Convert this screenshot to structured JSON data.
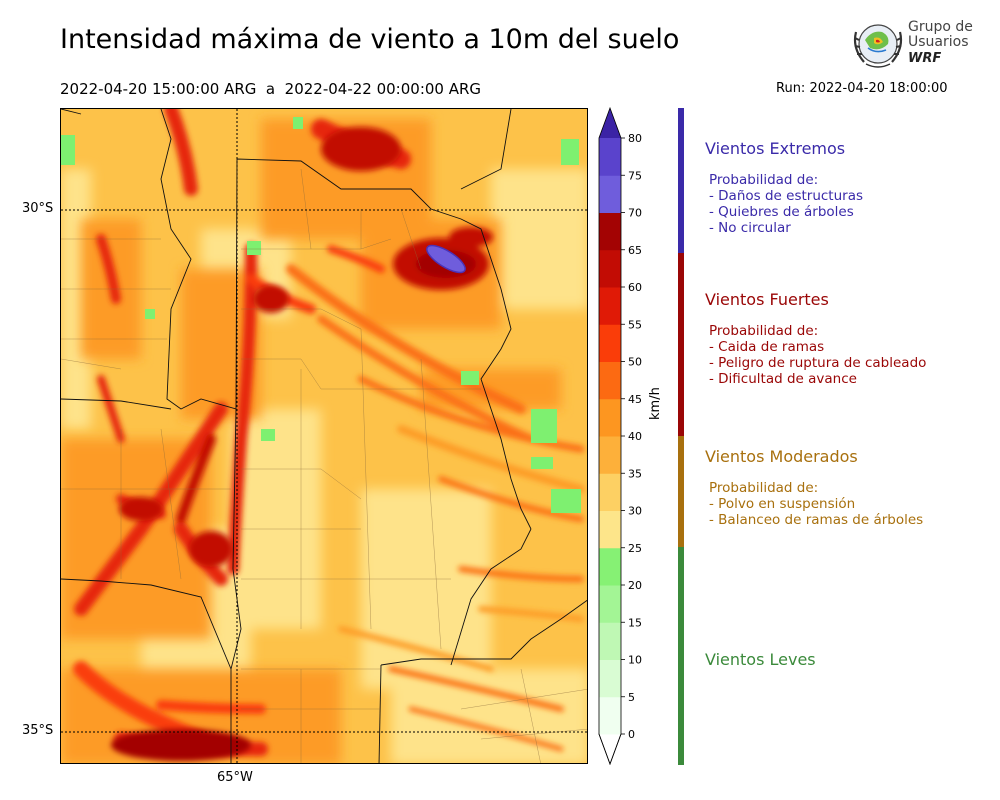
{
  "header": {
    "title": "Intensidad máxima de viento a 10m del suelo",
    "period": "2022-04-20 15:00:00 ARG  a  2022-04-22 00:00:00 ARG",
    "run": "Run: 2022-04-20 18:00:00"
  },
  "logo": {
    "line1": "Grupo de",
    "line2": "Usuarios",
    "line3": "WRF"
  },
  "map": {
    "lat_labels": [
      "30°S",
      "35°S"
    ],
    "lon_labels": [
      "65°W"
    ]
  },
  "colorbar": {
    "unit": "km/h",
    "ticks": [
      "0",
      "5",
      "10",
      "15",
      "20",
      "25",
      "30",
      "35",
      "40",
      "45",
      "50",
      "55",
      "60",
      "65",
      "70",
      "75",
      "80"
    ],
    "colors": [
      "#f0fff0",
      "#d9fcd3",
      "#bff8b4",
      "#a3f595",
      "#86f174",
      "#fde58a",
      "#fdd063",
      "#fdb03a",
      "#fd9620",
      "#fc6a12",
      "#fa3d09",
      "#e01a06",
      "#c20c04",
      "#a30303",
      "#6f5ddc",
      "#5a43cc",
      "#4a32b8"
    ],
    "under_color": "#ffffff",
    "over_color": "#3b23a5"
  },
  "categories": [
    {
      "title": "Vientos Extremos",
      "color": "#3a2aa9",
      "lines": "Probabilidad de:\n- Daños de estructuras\n- Quiebres de árboles\n- No circular"
    },
    {
      "title": "Vientos Fuertes",
      "color": "#9a0606",
      "lines": "Probabilidad de:\n- Caida de ramas\n- Peligro de ruptura de cableado\n- Dificultad de avance"
    },
    {
      "title": "Vientos Moderados",
      "color": "#a8700e",
      "lines": "Probabilidad de:\n- Polvo en suspensión\n- Balanceo de ramas de árboles"
    },
    {
      "title": "Vientos Leves",
      "color": "#3b8a3b",
      "lines": ""
    }
  ]
}
